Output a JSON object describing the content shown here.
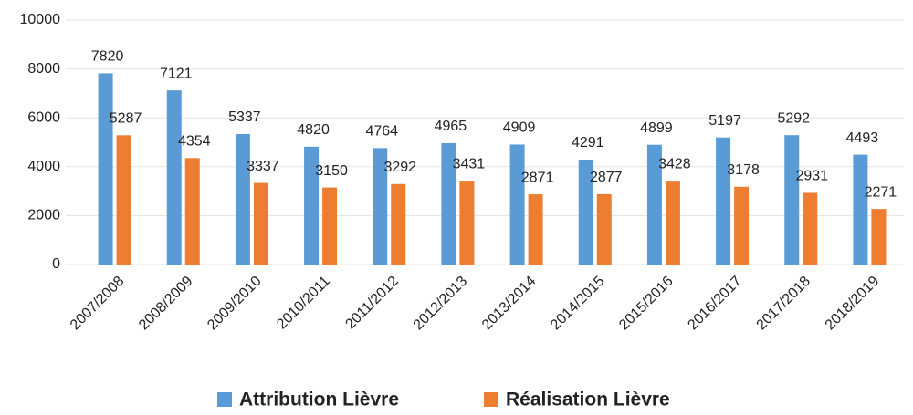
{
  "chart_data": {
    "type": "bar",
    "categories": [
      "2007/2008",
      "2008/2009",
      "2009/2010",
      "2010/2011",
      "2011/2012",
      "2012/2013",
      "2013/2014",
      "2014/2015",
      "2015/2016",
      "2016/2017",
      "2017/2018",
      "2018/2019"
    ],
    "series": [
      {
        "name": "Attribution Lièvre",
        "color": "#5b9bd5",
        "values": [
          7820,
          7121,
          5337,
          4820,
          4764,
          4965,
          4909,
          4291,
          4899,
          5197,
          5292,
          4493
        ]
      },
      {
        "name": "Réalisation Lièvre",
        "color": "#ed7d31",
        "values": [
          5287,
          4354,
          3337,
          3150,
          3292,
          3431,
          2871,
          2877,
          3428,
          3178,
          2931,
          2271
        ]
      }
    ],
    "ylim": [
      0,
      10000
    ],
    "yticks": [
      0,
      2000,
      4000,
      6000,
      8000,
      10000
    ],
    "grid": true
  }
}
